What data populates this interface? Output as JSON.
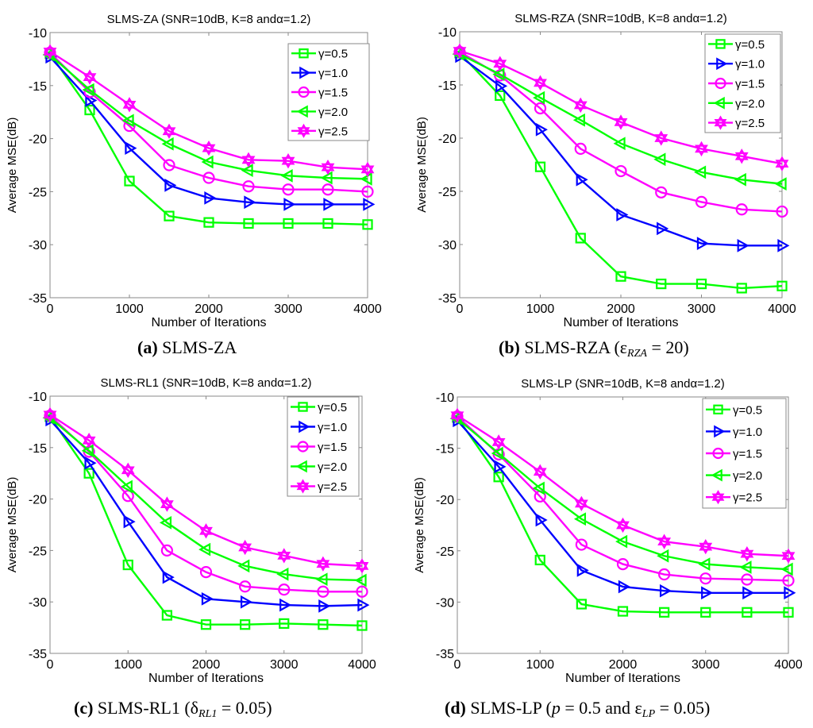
{
  "chart_data": [
    {
      "type": "line",
      "id": "a",
      "title": "SLMS-ZA (SNR=10dB, K=8 andα=1.2)",
      "xlabel": "Number of Iterations",
      "ylabel": "Average MSE(dB)",
      "xlim": [
        0,
        4000
      ],
      "ylim": [
        -35,
        -10
      ],
      "xticks": [
        0,
        1000,
        2000,
        3000,
        4000
      ],
      "yticks": [
        -10,
        -15,
        -20,
        -25,
        -30,
        -35
      ],
      "xtick_labels": [
        "0",
        "1000",
        "2000",
        "3000",
        "4000"
      ],
      "ytick_labels": [
        "-10",
        "-15",
        "-20",
        "-25",
        "-30",
        "-35"
      ],
      "grid": false,
      "legend_position": "top-right",
      "x": [
        0,
        500,
        1000,
        1500,
        2000,
        2500,
        3000,
        3500,
        4000
      ],
      "series": [
        {
          "name": "γ=0.5",
          "color": "#00ff00",
          "marker": "square",
          "values": [
            -12.0,
            -17.3,
            -24.0,
            -27.3,
            -27.9,
            -28.0,
            -28.0,
            -28.0,
            -28.1
          ]
        },
        {
          "name": "γ=1.0",
          "color": "#0000ff",
          "marker": "triangle-right",
          "values": [
            -12.3,
            -16.4,
            -20.9,
            -24.4,
            -25.6,
            -26.0,
            -26.2,
            -26.2,
            -26.2
          ]
        },
        {
          "name": "γ=1.5",
          "color": "#ff00ff",
          "marker": "circle",
          "values": [
            -11.9,
            -15.6,
            -18.8,
            -22.5,
            -23.7,
            -24.5,
            -24.8,
            -24.8,
            -25.0
          ]
        },
        {
          "name": "γ=2.0",
          "color": "#00ff00",
          "marker": "triangle-left",
          "values": [
            -12.1,
            -15.4,
            -18.3,
            -20.5,
            -22.2,
            -23.0,
            -23.5,
            -23.7,
            -23.8
          ]
        },
        {
          "name": "γ=2.5",
          "color": "#ff00ff",
          "marker": "hexagram",
          "values": [
            -11.8,
            -14.2,
            -16.8,
            -19.3,
            -20.9,
            -22.0,
            -22.1,
            -22.7,
            -22.9
          ]
        }
      ],
      "caption": {
        "letter": "(a)",
        "text": " SLMS-ZA"
      }
    },
    {
      "type": "line",
      "id": "b",
      "title": "SLMS-RZA (SNR=10dB, K=8 andα=1.2)",
      "xlabel": "Number of Iterations",
      "ylabel": "Average MSE(dB)",
      "xlim": [
        0,
        4000
      ],
      "ylim": [
        -35,
        -10
      ],
      "xticks": [
        0,
        1000,
        2000,
        3000,
        4000
      ],
      "yticks": [
        -10,
        -15,
        -20,
        -25,
        -30,
        -35
      ],
      "xtick_labels": [
        "0",
        "1000",
        "2000",
        "3000",
        "4000"
      ],
      "ytick_labels": [
        "-10",
        "-15",
        "-20",
        "-25",
        "-30",
        "-35"
      ],
      "grid": false,
      "legend_position": "top-right",
      "x": [
        0,
        500,
        1000,
        1500,
        2000,
        2500,
        3000,
        3500,
        4000
      ],
      "series": [
        {
          "name": "γ=0.5",
          "color": "#00ff00",
          "marker": "square",
          "values": [
            -12.0,
            -16.0,
            -22.7,
            -29.4,
            -33.0,
            -33.7,
            -33.7,
            -34.1,
            -33.9
          ]
        },
        {
          "name": "γ=1.0",
          "color": "#0000ff",
          "marker": "triangle-right",
          "values": [
            -12.3,
            -15.1,
            -19.2,
            -23.9,
            -27.2,
            -28.5,
            -29.9,
            -30.1,
            -30.1
          ]
        },
        {
          "name": "γ=1.5",
          "color": "#ff00ff",
          "marker": "circle",
          "values": [
            -11.9,
            -14.1,
            -17.2,
            -21.0,
            -23.1,
            -25.1,
            -26.0,
            -26.7,
            -26.9
          ]
        },
        {
          "name": "γ=2.0",
          "color": "#00ff00",
          "marker": "triangle-left",
          "values": [
            -12.1,
            -14.0,
            -16.2,
            -18.3,
            -20.5,
            -22.0,
            -23.2,
            -23.9,
            -24.3
          ]
        },
        {
          "name": "γ=2.5",
          "color": "#ff00ff",
          "marker": "hexagram",
          "values": [
            -11.8,
            -13.0,
            -14.8,
            -16.9,
            -18.5,
            -20.0,
            -21.0,
            -21.7,
            -22.4
          ]
        }
      ],
      "caption": {
        "letter": "(b)",
        "text": " SLMS-RZA (ε",
        "sub": "RZA",
        "after": " = 20)"
      }
    },
    {
      "type": "line",
      "id": "c",
      "title": "SLMS-RL1 (SNR=10dB, K=8 andα=1.2)",
      "xlabel": "Number of Iterations",
      "ylabel": "Average MSE(dB)",
      "xlim": [
        0,
        4000
      ],
      "ylim": [
        -35,
        -10
      ],
      "xticks": [
        0,
        1000,
        2000,
        3000,
        4000
      ],
      "yticks": [
        -10,
        -15,
        -20,
        -25,
        -30,
        -35
      ],
      "xtick_labels": [
        "0",
        "1000",
        "2000",
        "3000",
        "4000"
      ],
      "ytick_labels": [
        "-10",
        "-15",
        "-20",
        "-25",
        "-30",
        "-35"
      ],
      "grid": false,
      "legend_position": "top-right",
      "x": [
        0,
        500,
        1000,
        1500,
        2000,
        2500,
        3000,
        3500,
        4000
      ],
      "series": [
        {
          "name": "γ=0.5",
          "color": "#00ff00",
          "marker": "square",
          "values": [
            -12.0,
            -17.5,
            -26.4,
            -31.3,
            -32.2,
            -32.2,
            -32.1,
            -32.2,
            -32.3
          ]
        },
        {
          "name": "γ=1.0",
          "color": "#0000ff",
          "marker": "triangle-right",
          "values": [
            -12.3,
            -16.5,
            -22.2,
            -27.6,
            -29.7,
            -30.0,
            -30.3,
            -30.4,
            -30.3
          ]
        },
        {
          "name": "γ=1.5",
          "color": "#ff00ff",
          "marker": "circle",
          "values": [
            -11.9,
            -15.4,
            -19.7,
            -25.0,
            -27.1,
            -28.5,
            -28.8,
            -29.0,
            -29.0
          ]
        },
        {
          "name": "γ=2.0",
          "color": "#00ff00",
          "marker": "triangle-left",
          "values": [
            -12.1,
            -15.3,
            -18.8,
            -22.3,
            -24.9,
            -26.5,
            -27.3,
            -27.8,
            -27.9
          ]
        },
        {
          "name": "γ=2.5",
          "color": "#ff00ff",
          "marker": "hexagram",
          "values": [
            -11.8,
            -14.3,
            -17.2,
            -20.5,
            -23.1,
            -24.7,
            -25.5,
            -26.3,
            -26.5
          ]
        }
      ],
      "caption": {
        "letter": "(c)",
        "text": " SLMS-RL1 (δ",
        "sub": "RL1",
        "after": " = 0.05)"
      }
    },
    {
      "type": "line",
      "id": "d",
      "title": "SLMS-LP (SNR=10dB, K=8 andα=1.2)",
      "xlabel": "Number of Iterations",
      "ylabel": "Average MSE(dB)",
      "xlim": [
        0,
        4000
      ],
      "ylim": [
        -35,
        -10
      ],
      "xticks": [
        0,
        1000,
        2000,
        3000,
        4000
      ],
      "yticks": [
        -10,
        -15,
        -20,
        -25,
        -30,
        -35
      ],
      "xtick_labels": [
        "0",
        "1000",
        "2000",
        "3000",
        "4000"
      ],
      "ytick_labels": [
        "-10",
        "-15",
        "-20",
        "-25",
        "-30",
        "-35"
      ],
      "grid": false,
      "legend_position": "top-right",
      "x": [
        0,
        500,
        1000,
        1500,
        2000,
        2500,
        3000,
        3500,
        4000
      ],
      "series": [
        {
          "name": "γ=0.5",
          "color": "#00ff00",
          "marker": "square",
          "values": [
            -12.0,
            -17.8,
            -25.9,
            -30.2,
            -30.9,
            -31.0,
            -31.0,
            -31.0,
            -31.0
          ]
        },
        {
          "name": "γ=1.0",
          "color": "#0000ff",
          "marker": "triangle-right",
          "values": [
            -12.3,
            -16.8,
            -22.0,
            -26.9,
            -28.5,
            -28.9,
            -29.1,
            -29.1,
            -29.1
          ]
        },
        {
          "name": "γ=1.5",
          "color": "#ff00ff",
          "marker": "circle",
          "values": [
            -11.9,
            -15.6,
            -19.7,
            -24.4,
            -26.3,
            -27.3,
            -27.7,
            -27.8,
            -27.9
          ]
        },
        {
          "name": "γ=2.0",
          "color": "#00ff00",
          "marker": "triangle-left",
          "values": [
            -12.1,
            -15.5,
            -18.9,
            -21.9,
            -24.1,
            -25.5,
            -26.3,
            -26.6,
            -26.8
          ]
        },
        {
          "name": "γ=2.5",
          "color": "#ff00ff",
          "marker": "hexagram",
          "values": [
            -11.8,
            -14.4,
            -17.3,
            -20.4,
            -22.5,
            -24.1,
            -24.6,
            -25.3,
            -25.5
          ]
        }
      ],
      "caption": {
        "letter": "(d)",
        "text": " SLMS-LP (",
        "italic": "p",
        "mid": " = 0.5 and ε",
        "sub": "LP",
        "after": " = 0.05)"
      }
    }
  ]
}
